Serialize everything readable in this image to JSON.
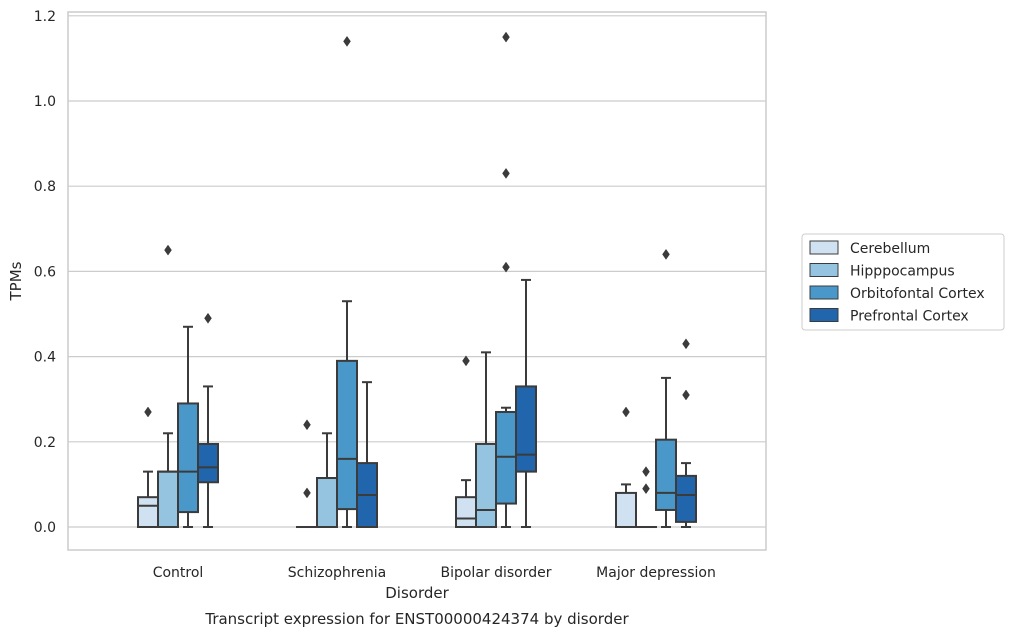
{
  "chart_data": {
    "type": "box",
    "title": "",
    "caption": "Transcript expression for ENST00000424374 by disorder",
    "xlabel": "Disorder",
    "ylabel": "TPMs",
    "ylim": [
      -0.055,
      1.21
    ],
    "yticks": [
      0.0,
      0.2,
      0.4,
      0.6,
      0.8,
      1.0,
      1.2
    ],
    "ytick_labels": [
      "0.0",
      "0.2",
      "0.4",
      "0.6",
      "0.8",
      "1.0",
      "1.2"
    ],
    "grid": "horizontal",
    "legend_position": "right",
    "categories": [
      "Control",
      "Schizophrenia",
      "Bipolar disorder",
      "Major depression"
    ],
    "series": [
      {
        "name": "Cerebellum",
        "color": "#d0e1f2",
        "boxes": [
          {
            "whisker_low": 0.0,
            "q1": 0.0,
            "median": 0.05,
            "q3": 0.07,
            "whisker_high": 0.13,
            "outliers": [
              0.27
            ]
          },
          {
            "whisker_low": 0.0,
            "q1": 0.0,
            "median": 0.0,
            "q3": 0.0,
            "whisker_high": 0.0,
            "outliers": [
              0.08,
              0.24
            ]
          },
          {
            "whisker_low": 0.0,
            "q1": 0.0,
            "median": 0.02,
            "q3": 0.07,
            "whisker_high": 0.11,
            "outliers": [
              0.39
            ]
          },
          {
            "whisker_low": 0.0,
            "q1": 0.0,
            "median": 0.0,
            "q3": 0.08,
            "whisker_high": 0.1,
            "outliers": [
              0.27
            ]
          }
        ]
      },
      {
        "name": "Hipppocampus",
        "color": "#94c4df",
        "boxes": [
          {
            "whisker_low": 0.0,
            "q1": 0.0,
            "median": 0.13,
            "q3": 0.13,
            "whisker_high": 0.22,
            "outliers": [
              0.65
            ]
          },
          {
            "whisker_low": 0.0,
            "q1": 0.0,
            "median": 0.0,
            "q3": 0.115,
            "whisker_high": 0.22,
            "outliers": []
          },
          {
            "whisker_low": 0.0,
            "q1": 0.0,
            "median": 0.04,
            "q3": 0.195,
            "whisker_high": 0.41,
            "outliers": []
          },
          {
            "whisker_low": 0.0,
            "q1": 0.0,
            "median": 0.0,
            "q3": 0.0,
            "whisker_high": 0.0,
            "outliers": [
              0.09,
              0.13
            ]
          }
        ]
      },
      {
        "name": "Orbitofontal Cortex",
        "color": "#4a98c9",
        "boxes": [
          {
            "whisker_low": 0.0,
            "q1": 0.035,
            "median": 0.13,
            "q3": 0.29,
            "whisker_high": 0.47,
            "outliers": []
          },
          {
            "whisker_low": 0.0,
            "q1": 0.042,
            "median": 0.16,
            "q3": 0.39,
            "whisker_high": 0.53,
            "outliers": [
              1.14
            ]
          },
          {
            "whisker_low": 0.0,
            "q1": 0.055,
            "median": 0.165,
            "q3": 0.27,
            "whisker_high": 0.28,
            "outliers": [
              0.61,
              0.83,
              1.15
            ]
          },
          {
            "whisker_low": 0.0,
            "q1": 0.04,
            "median": 0.08,
            "q3": 0.205,
            "whisker_high": 0.35,
            "outliers": [
              0.64
            ]
          }
        ]
      },
      {
        "name": "Prefrontal Cortex",
        "color": "#2166ac",
        "boxes": [
          {
            "whisker_low": 0.0,
            "q1": 0.105,
            "median": 0.14,
            "q3": 0.195,
            "whisker_high": 0.33,
            "outliers": [
              0.49
            ]
          },
          {
            "whisker_low": 0.0,
            "q1": 0.0,
            "median": 0.075,
            "q3": 0.15,
            "whisker_high": 0.34,
            "outliers": []
          },
          {
            "whisker_low": 0.0,
            "q1": 0.13,
            "median": 0.17,
            "q3": 0.33,
            "whisker_high": 0.58,
            "outliers": []
          },
          {
            "whisker_low": 0.0,
            "q1": 0.012,
            "median": 0.075,
            "q3": 0.12,
            "whisker_high": 0.15,
            "outliers": [
              0.31,
              0.43
            ]
          }
        ]
      }
    ]
  }
}
